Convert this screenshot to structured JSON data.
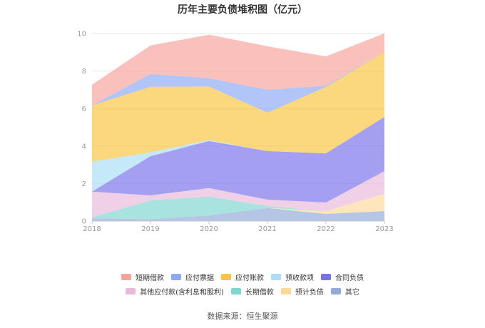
{
  "chart_data": {
    "type": "area",
    "stacked": true,
    "title": "历年主要负债堆积图（亿元）",
    "categories": [
      "2018",
      "2019",
      "2020",
      "2021",
      "2022",
      "2023"
    ],
    "ylim": [
      0,
      10
    ],
    "yticks": [
      0,
      2,
      4,
      6,
      8,
      10
    ],
    "grid": true,
    "legend_position": "bottom",
    "series": [
      {
        "name": "短期借款",
        "color": "#f8a29c",
        "values": [
          1.1,
          1.52,
          2.32,
          2.32,
          1.56,
          1.0
        ]
      },
      {
        "name": "应付票据",
        "color": "#8da9f5",
        "values": [
          0.0,
          0.68,
          0.45,
          1.22,
          0.07,
          0.0
        ]
      },
      {
        "name": "应付账款",
        "color": "#f9c440",
        "values": [
          3.0,
          3.5,
          2.85,
          2.05,
          3.54,
          3.46
        ]
      },
      {
        "name": "预收款项",
        "color": "#a9def6",
        "values": [
          1.6,
          0.2,
          0.05,
          0.0,
          0.0,
          0.0
        ]
      },
      {
        "name": "合同负债",
        "color": "#7b72ea",
        "values": [
          0.0,
          2.09,
          2.51,
          2.59,
          2.62,
          2.89
        ]
      },
      {
        "name": "其他应付款(含利息和股利)",
        "color": "#e8b9dc",
        "values": [
          1.37,
          0.27,
          0.46,
          0.34,
          0.46,
          1.22
        ]
      },
      {
        "name": "长期借款",
        "color": "#80d5d0",
        "values": [
          0.05,
          1.0,
          1.0,
          0.1,
          0.0,
          0.0
        ]
      },
      {
        "name": "预计负债",
        "color": "#fdd89b",
        "values": [
          0.0,
          0.0,
          0.0,
          0.0,
          0.15,
          0.91
        ]
      },
      {
        "name": "其它",
        "color": "#91aad8",
        "values": [
          0.15,
          0.1,
          0.3,
          0.7,
          0.38,
          0.53
        ]
      }
    ]
  },
  "source": "数据来源：恒生聚源"
}
